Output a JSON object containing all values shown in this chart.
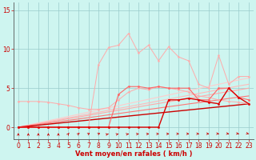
{
  "x": [
    0,
    1,
    2,
    3,
    4,
    5,
    6,
    7,
    8,
    9,
    10,
    11,
    12,
    13,
    14,
    15,
    16,
    17,
    18,
    19,
    20,
    21,
    22,
    23
  ],
  "series": [
    {
      "name": "lightest_spiky",
      "color": "#ffaaaa",
      "linewidth": 0.7,
      "marker": "o",
      "markersize": 1.8,
      "zorder": 3,
      "y": [
        0.0,
        0.0,
        0.0,
        0.0,
        0.0,
        0.0,
        0.0,
        0.0,
        8.0,
        10.2,
        10.5,
        12.0,
        9.5,
        10.5,
        8.5,
        10.3,
        9.0,
        8.5,
        5.5,
        5.0,
        9.2,
        5.5,
        6.5,
        6.5
      ]
    },
    {
      "name": "light_flat_start",
      "color": "#ffaaaa",
      "linewidth": 0.7,
      "marker": "o",
      "markersize": 1.8,
      "zorder": 3,
      "y": [
        3.3,
        3.3,
        3.3,
        3.2,
        3.0,
        2.8,
        2.5,
        2.3,
        2.3,
        2.5,
        3.5,
        4.5,
        5.0,
        4.8,
        5.2,
        5.0,
        4.8,
        4.5,
        4.0,
        3.8,
        3.5,
        3.3,
        3.2,
        3.0
      ]
    },
    {
      "name": "medium_markers",
      "color": "#ff6666",
      "linewidth": 0.8,
      "marker": "o",
      "markersize": 2.0,
      "zorder": 4,
      "y": [
        0.0,
        0.0,
        0.0,
        0.0,
        0.0,
        0.0,
        0.0,
        0.0,
        0.0,
        0.0,
        4.2,
        5.2,
        5.2,
        5.0,
        5.2,
        5.0,
        5.0,
        5.0,
        3.5,
        3.5,
        5.0,
        5.0,
        3.8,
        3.5
      ]
    },
    {
      "name": "dark_markers",
      "color": "#dd0000",
      "linewidth": 1.0,
      "marker": "o",
      "markersize": 2.0,
      "zorder": 5,
      "y": [
        0.0,
        0.0,
        0.0,
        0.0,
        0.0,
        0.0,
        0.0,
        0.0,
        0.0,
        0.0,
        0.0,
        0.0,
        0.0,
        0.0,
        0.0,
        3.5,
        3.5,
        3.7,
        3.5,
        3.2,
        3.0,
        5.0,
        3.8,
        3.0
      ]
    },
    {
      "name": "slope_lightest",
      "color": "#ffcccc",
      "linewidth": 0.8,
      "marker": null,
      "zorder": 2,
      "y": [
        0.0,
        0.28,
        0.55,
        0.83,
        1.1,
        1.38,
        1.65,
        1.93,
        2.2,
        2.48,
        2.75,
        3.03,
        3.3,
        3.58,
        3.85,
        4.13,
        4.4,
        4.68,
        4.95,
        5.23,
        5.5,
        5.78,
        6.05,
        6.3
      ]
    },
    {
      "name": "slope_light2",
      "color": "#ffbbbb",
      "linewidth": 0.8,
      "marker": null,
      "zorder": 2,
      "y": [
        0.0,
        0.24,
        0.48,
        0.72,
        0.96,
        1.2,
        1.44,
        1.68,
        1.92,
        2.16,
        2.4,
        2.64,
        2.88,
        3.12,
        3.36,
        3.6,
        3.84,
        4.08,
        4.32,
        4.56,
        4.8,
        5.04,
        5.28,
        5.5
      ]
    },
    {
      "name": "slope_light3",
      "color": "#ffaaaa",
      "linewidth": 0.8,
      "marker": null,
      "zorder": 2,
      "y": [
        0.0,
        0.22,
        0.43,
        0.65,
        0.87,
        1.09,
        1.3,
        1.52,
        1.74,
        1.96,
        2.17,
        2.39,
        2.61,
        2.83,
        3.04,
        3.26,
        3.48,
        3.7,
        3.91,
        4.13,
        4.35,
        4.57,
        4.78,
        5.0
      ]
    },
    {
      "name": "slope_medium",
      "color": "#ff7777",
      "linewidth": 0.8,
      "marker": null,
      "zorder": 2,
      "y": [
        0.0,
        0.18,
        0.35,
        0.53,
        0.7,
        0.88,
        1.05,
        1.23,
        1.4,
        1.58,
        1.75,
        1.93,
        2.1,
        2.28,
        2.45,
        2.63,
        2.8,
        2.98,
        3.15,
        3.33,
        3.5,
        3.68,
        3.85,
        4.0
      ]
    },
    {
      "name": "slope_dark",
      "color": "#cc0000",
      "linewidth": 1.0,
      "marker": null,
      "zorder": 2,
      "y": [
        0.0,
        0.13,
        0.26,
        0.39,
        0.52,
        0.65,
        0.78,
        0.91,
        1.04,
        1.17,
        1.3,
        1.43,
        1.56,
        1.69,
        1.82,
        1.95,
        2.08,
        2.21,
        2.34,
        2.47,
        2.6,
        2.73,
        2.86,
        3.0
      ]
    }
  ],
  "wind_dirs": [
    0,
    0,
    0,
    0,
    0,
    15,
    25,
    35,
    40,
    50,
    55,
    60,
    70,
    80,
    85,
    90,
    95,
    100,
    100,
    105,
    110,
    115,
    120,
    125
  ],
  "xlabel": "Vent moyen/en rafales ( km/h )",
  "ylim": [
    -1.5,
    16
  ],
  "xlim": [
    -0.5,
    23.5
  ],
  "yticks": [
    0,
    5,
    10,
    15
  ],
  "xticks": [
    0,
    1,
    2,
    3,
    4,
    5,
    6,
    7,
    8,
    9,
    10,
    11,
    12,
    13,
    14,
    15,
    16,
    17,
    18,
    19,
    20,
    21,
    22,
    23
  ],
  "bg_color": "#cef5f0",
  "grid_color": "#99cccc",
  "text_color": "#cc0000",
  "xlabel_color": "#cc0000"
}
